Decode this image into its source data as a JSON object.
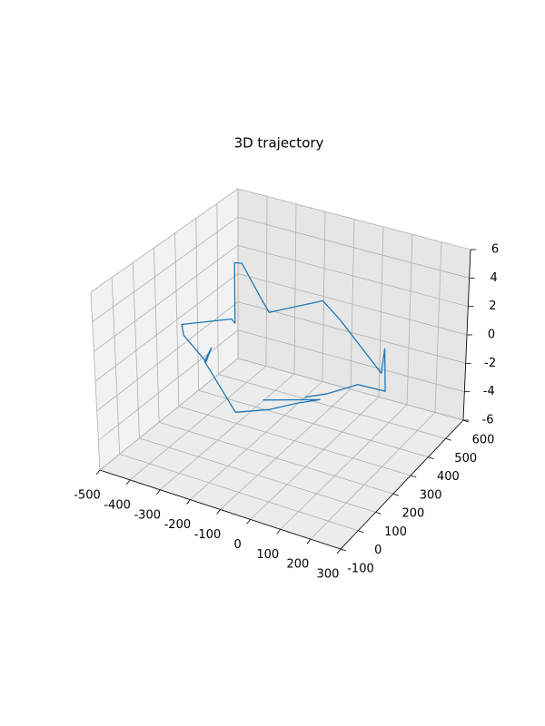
{
  "chart_data": {
    "type": "line3d",
    "title": "3D trajectory",
    "xlim": [
      -500,
      300
    ],
    "ylim": [
      -100,
      600
    ],
    "zlim": [
      -6,
      6
    ],
    "xticks": [
      -500,
      -400,
      -300,
      -200,
      -100,
      0,
      100,
      200,
      300
    ],
    "yticks": [
      -100,
      0,
      100,
      200,
      300,
      400,
      500,
      600
    ],
    "zticks": [
      -6,
      -4,
      -2,
      0,
      2,
      4,
      6
    ],
    "grid": true,
    "series": [
      {
        "color": "#1f77b4",
        "x": [
          -133,
          10,
          -40,
          -106,
          -183,
          -257,
          -330,
          -328,
          -325,
          -434,
          -445,
          -340,
          -318,
          -318,
          -308,
          -205,
          -161,
          -61,
          17,
          197,
          208,
          210,
          98,
          45,
          -27
        ],
        "y": [
          182,
          259,
          211,
          174,
          116,
          142,
          185,
          217,
          185,
          237,
          244,
          337,
          322,
          322,
          343,
          279,
          258,
          382,
          354,
          288,
          285,
          291,
          323,
          244,
          237
        ],
        "z": [
          -2,
          -2,
          -2,
          -2.4,
          -2.4,
          -1.2,
          -0.6,
          0,
          -0.6,
          0,
          0.6,
          0.6,
          0.6,
          4.8,
          4.6,
          3.6,
          3,
          3,
          2.4,
          0.6,
          2.4,
          -0.6,
          -1.2,
          -1.2,
          -1.8
        ]
      }
    ]
  }
}
